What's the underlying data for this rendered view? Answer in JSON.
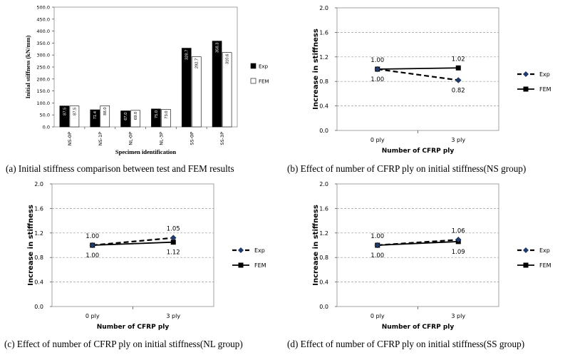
{
  "chart_data": [
    {
      "type": "bar",
      "caption": "(a) Initial stiffness comparison between test and FEM results",
      "ylabel": "Initial stiffness (kN/mm)",
      "xlabel": "Specimen identification",
      "ylim": [
        0,
        500
      ],
      "yticks": [
        "0.0",
        "50.0",
        "100.0",
        "150.0",
        "200.0",
        "250.0",
        "300.0",
        "350.0",
        "400.0",
        "450.0",
        "500.0"
      ],
      "categories": [
        "NS-0P",
        "NS-1P",
        "NL-0P",
        "NL-3P",
        "SS-0P",
        "SS-3P"
      ],
      "series": [
        {
          "name": "Exp",
          "color": "#000000",
          "values": [
            87.5,
            71.4,
            67.0,
            75.0,
            328.7,
            358.3
          ],
          "labels": [
            "87.5",
            "71.4",
            "67.0",
            "75.0",
            "328.7",
            "358.3"
          ]
        },
        {
          "name": "FEM",
          "color": "#ffffff",
          "values": [
            87.5,
            88.0,
            69.0,
            73.0,
            292.7,
            310.6
          ],
          "labels": [
            "87.5",
            "88.0",
            "69.0",
            "73.0",
            "292.7",
            "310.6"
          ]
        }
      ],
      "legend_position": "right",
      "grid": false
    },
    {
      "type": "line",
      "caption": "(b) Effect of number of CFRP ply on initial stiffness(NS group)",
      "ylabel": "Increase in stiffness",
      "xlabel": "Number of CFRP ply",
      "categories": [
        "0 ply",
        "3 ply"
      ],
      "ylim": [
        0,
        2
      ],
      "yticks": [
        "0.0",
        "0.4",
        "0.8",
        "1.2",
        "1.6",
        "2.0"
      ],
      "series": [
        {
          "name": "Exp",
          "style": "dashed",
          "marker": "diamond",
          "values": [
            1.0,
            0.82
          ],
          "labels": [
            "1.00",
            "0.82"
          ]
        },
        {
          "name": "FEM",
          "style": "solid",
          "marker": "square",
          "values": [
            1.0,
            1.02
          ],
          "labels": [
            "1.00",
            "1.02"
          ]
        }
      ],
      "legend_position": "right",
      "grid": true
    },
    {
      "type": "line",
      "caption": "(c) Effect of number of CFRP ply on initial stiffness(NL group)",
      "ylabel": "Increase in stiffness",
      "xlabel": "Number of CFRP ply",
      "categories": [
        "0 ply",
        "3 ply"
      ],
      "ylim": [
        0,
        2
      ],
      "yticks": [
        "0.0",
        "0.4",
        "0.8",
        "1.2",
        "1.6",
        "2.0"
      ],
      "series": [
        {
          "name": "Exp",
          "style": "dashed",
          "marker": "diamond",
          "values": [
            1.0,
            1.12
          ],
          "labels": [
            "1.00",
            "1.12"
          ]
        },
        {
          "name": "FEM",
          "style": "solid",
          "marker": "square",
          "values": [
            1.0,
            1.05
          ],
          "labels": [
            "1.00",
            "1.05"
          ]
        }
      ],
      "legend_position": "right",
      "grid": true
    },
    {
      "type": "line",
      "caption": "(d) Effect of number of CFRP ply on initial stiffness(SS group)",
      "ylabel": "Increase in stiffness",
      "xlabel": "Number of CFRP ply",
      "categories": [
        "0 ply",
        "3 ply"
      ],
      "ylim": [
        0,
        2
      ],
      "yticks": [
        "0.0",
        "0.4",
        "0.8",
        "1.2",
        "1.6",
        "2.0"
      ],
      "series": [
        {
          "name": "Exp",
          "style": "dashed",
          "marker": "diamond",
          "values": [
            1.0,
            1.09
          ],
          "labels": [
            "1.00",
            "1.09"
          ]
        },
        {
          "name": "FEM",
          "style": "solid",
          "marker": "square",
          "values": [
            1.0,
            1.06
          ],
          "labels": [
            "1.00",
            "1.06"
          ]
        }
      ],
      "legend_position": "right",
      "grid": true
    }
  ]
}
